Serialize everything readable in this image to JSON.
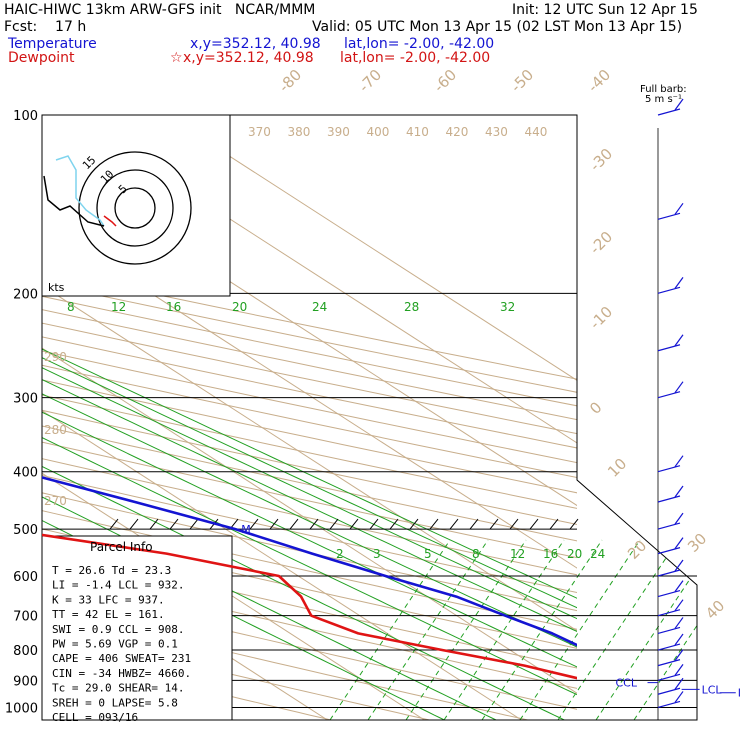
{
  "header": {
    "line1_left": "HAIC-HIWC 13km ARW-GFS init   NCAR/MMM",
    "line1_right": "Init: 12 UTC Sun 12 Apr 15",
    "line2_left": "Fcst:    17 h",
    "line2_right": "Valid: 05 UTC Mon 13 Apr 15 (02 LST Mon 13 Apr 15)",
    "temp_label": "Temperature",
    "temp_xy": "x,y=352.12, 40.98",
    "temp_latlon": "lat,lon= -2.00, -42.00",
    "dew_label": "Dewpoint",
    "dew_star": "☆",
    "dew_xy": "x,y=352.12, 40.98",
    "dew_latlon": "lat,lon= -2.00, -42.00"
  },
  "barb_legend": {
    "line1": "Full barb:",
    "line2": "5 m s⁻¹"
  },
  "hodograph": {
    "units": "kts",
    "rings": [
      "5",
      "10",
      "15"
    ]
  },
  "parcel": {
    "title": "Parcel Info",
    "rows": [
      "T  =   26.6 Td =  23.3",
      "LI =   -1.4 LCL =  932.",
      "K  =     33 LFC =  937.",
      "TT =     42 EL  =  161.",
      "SWI =   0.9 CCL =  908.",
      "PW =   5.69 VGP =   0.1",
      "CAPE =  406 SWEAT=  231",
      "CIN =   -34 HWBZ= 4660.",
      "Tc =   29.0 SHEAR=  14.",
      "SREH =    0 LAPSE=  5.8",
      "CELL = 093/16"
    ]
  },
  "labels": {
    "el": "EL",
    "m": "M",
    "ccl": "CCL",
    "lcl": "LCL",
    "lfc": "LFC"
  },
  "colors": {
    "temperature": "#1414d2",
    "dewpoint": "#e01414",
    "dry_adiabat": "#c8ae8c",
    "mixing_ratio": "#22a022",
    "isobar": "#000000"
  },
  "chart_data": {
    "type": "line",
    "title": "",
    "pressure_levels": [
      100,
      200,
      300,
      400,
      500,
      600,
      700,
      800,
      900,
      1000
    ],
    "isotherm_labels": [
      "-80",
      "-70",
      "-60",
      "-50",
      "-40",
      "-30",
      "-20",
      "-10",
      "0",
      "10",
      "20",
      "30",
      "40"
    ],
    "theta_labels_top": [
      "370",
      "380",
      "390",
      "400",
      "410",
      "420",
      "430",
      "440"
    ],
    "theta_labels_left": [
      "290",
      "280",
      "270"
    ],
    "mixing_ratio_labels_200": [
      "8",
      "12",
      "16",
      "20",
      "24",
      "28",
      "32"
    ],
    "mixing_ratio_labels_550": [
      "2",
      "3",
      "5",
      "8",
      "12",
      "16",
      "20",
      "24"
    ],
    "series": [
      {
        "name": "Temperature",
        "pressure": [
          100,
          120,
          150,
          170,
          200,
          250,
          300,
          350,
          400,
          450,
          500,
          550,
          600,
          650,
          700,
          750,
          800,
          850,
          900,
          950,
          1000
        ],
        "temperature": [
          -78,
          -76,
          -73,
          -66,
          -56,
          -42,
          -31,
          -21,
          -12,
          -5,
          1,
          5,
          9,
          13,
          15,
          17,
          18,
          19,
          20,
          22,
          26.6
        ]
      },
      {
        "name": "Dewpoint",
        "pressure": [
          100,
          120,
          150,
          170,
          200,
          250,
          280,
          300,
          330,
          350,
          400,
          450,
          500,
          550,
          600,
          650,
          700,
          750,
          800,
          850,
          900,
          950,
          1000
        ],
        "temperature": [
          -40,
          -45,
          -54,
          -68,
          -73,
          -58,
          -49,
          -47,
          -48,
          -47,
          -42,
          -36,
          -23,
          -10,
          -2,
          -3,
          -5,
          -3,
          3,
          9,
          13,
          18,
          23.3
        ]
      }
    ],
    "wind_barbs_pressure": [
      100,
      150,
      200,
      250,
      300,
      400,
      450,
      500,
      550,
      600,
      650,
      700,
      750,
      800,
      850,
      900,
      950,
      1000
    ]
  }
}
